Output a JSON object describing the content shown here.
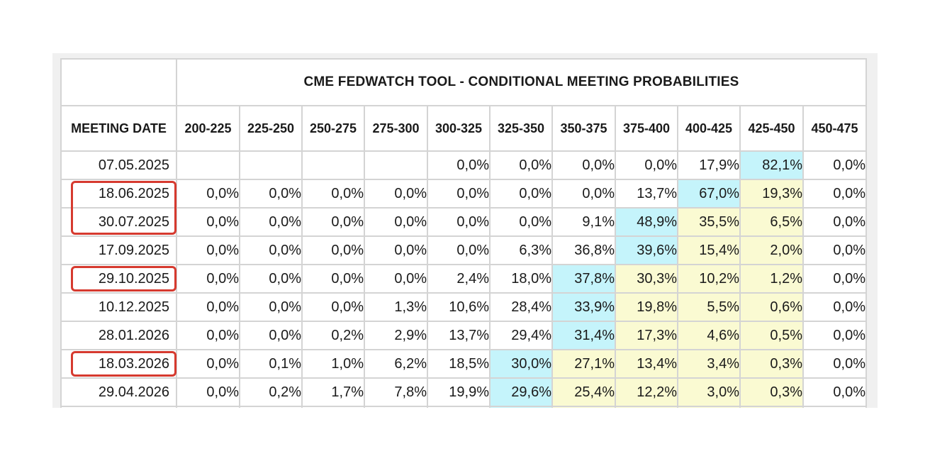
{
  "title": "CME FEDWATCH TOOL - CONDITIONAL MEETING PROBABILITIES",
  "date_header": "MEETING DATE",
  "columns": [
    "200-225",
    "225-250",
    "250-275",
    "275-300",
    "300-325",
    "325-350",
    "350-375",
    "375-400",
    "400-425",
    "425-450",
    "450-475"
  ],
  "rows": [
    {
      "date": "07.05.2025",
      "values": [
        "",
        "",
        "",
        "",
        "0,0%",
        "0,0%",
        "0,0%",
        "0,0%",
        "17,9%",
        "82,1%",
        "0,0%"
      ]
    },
    {
      "date": "18.06.2025",
      "values": [
        "0,0%",
        "0,0%",
        "0,0%",
        "0,0%",
        "0,0%",
        "0,0%",
        "0,0%",
        "13,7%",
        "67,0%",
        "19,3%",
        "0,0%"
      ]
    },
    {
      "date": "30.07.2025",
      "values": [
        "0,0%",
        "0,0%",
        "0,0%",
        "0,0%",
        "0,0%",
        "0,0%",
        "9,1%",
        "48,9%",
        "35,5%",
        "6,5%",
        "0,0%"
      ]
    },
    {
      "date": "17.09.2025",
      "values": [
        "0,0%",
        "0,0%",
        "0,0%",
        "0,0%",
        "0,0%",
        "6,3%",
        "36,8%",
        "39,6%",
        "15,4%",
        "2,0%",
        "0,0%"
      ]
    },
    {
      "date": "29.10.2025",
      "values": [
        "0,0%",
        "0,0%",
        "0,0%",
        "0,0%",
        "2,4%",
        "18,0%",
        "37,8%",
        "30,3%",
        "10,2%",
        "1,2%",
        "0,0%"
      ]
    },
    {
      "date": "10.12.2025",
      "values": [
        "0,0%",
        "0,0%",
        "0,0%",
        "1,3%",
        "10,6%",
        "28,4%",
        "33,9%",
        "19,8%",
        "5,5%",
        "0,6%",
        "0,0%"
      ]
    },
    {
      "date": "28.01.2026",
      "values": [
        "0,0%",
        "0,0%",
        "0,2%",
        "2,9%",
        "13,7%",
        "29,4%",
        "31,4%",
        "17,3%",
        "4,6%",
        "0,5%",
        "0,0%"
      ]
    },
    {
      "date": "18.03.2026",
      "values": [
        "0,0%",
        "0,1%",
        "1,0%",
        "6,2%",
        "18,5%",
        "30,0%",
        "27,1%",
        "13,4%",
        "3,4%",
        "0,3%",
        "0,0%"
      ]
    },
    {
      "date": "29.04.2026",
      "values": [
        "0,0%",
        "0,2%",
        "1,7%",
        "7,8%",
        "19,9%",
        "29,6%",
        "25,4%",
        "12,2%",
        "3,0%",
        "0,3%",
        "0,0%"
      ]
    },
    {
      "date": "",
      "values": [
        "",
        "",
        "",
        "",
        "",
        "",
        "",
        "",
        "",
        "",
        ""
      ]
    }
  ],
  "highlight": {
    "max_color": "#c5f4fb",
    "alt_color": "#fafad2",
    "max_cells": [
      [
        0,
        9
      ],
      [
        1,
        8
      ],
      [
        2,
        7
      ],
      [
        3,
        7
      ],
      [
        4,
        6
      ],
      [
        5,
        6
      ],
      [
        6,
        6
      ],
      [
        7,
        5
      ],
      [
        8,
        5
      ],
      [
        9,
        5
      ]
    ],
    "alt_cells": [
      [
        1,
        9
      ],
      [
        2,
        8
      ],
      [
        2,
        9
      ],
      [
        3,
        8
      ],
      [
        3,
        9
      ],
      [
        4,
        7
      ],
      [
        4,
        8
      ],
      [
        4,
        9
      ],
      [
        5,
        7
      ],
      [
        5,
        8
      ],
      [
        5,
        9
      ],
      [
        6,
        7
      ],
      [
        6,
        8
      ],
      [
        6,
        9
      ],
      [
        7,
        6
      ],
      [
        7,
        7
      ],
      [
        7,
        8
      ],
      [
        7,
        9
      ],
      [
        8,
        6
      ],
      [
        8,
        7
      ],
      [
        8,
        8
      ],
      [
        8,
        9
      ],
      [
        9,
        6
      ],
      [
        9,
        7
      ],
      [
        9,
        8
      ],
      [
        9,
        9
      ]
    ]
  },
  "annotations": {
    "circled_dates": [
      "18.06.2025",
      "30.07.2025",
      "29.10.2025",
      "18.03.2026"
    ],
    "circle_color": "#d63a2f"
  }
}
